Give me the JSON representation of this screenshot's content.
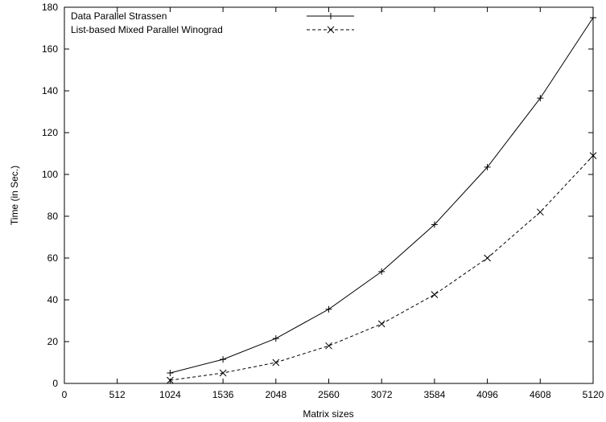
{
  "chart_data": {
    "type": "line",
    "title": "",
    "xlabel": "Matrix sizes",
    "ylabel": "Time (in Sec.)",
    "xlim": [
      0,
      5120
    ],
    "ylim": [
      0,
      180
    ],
    "xticks": [
      0,
      512,
      1024,
      1536,
      2048,
      2560,
      3072,
      3584,
      4096,
      4608,
      5120
    ],
    "yticks": [
      0,
      20,
      40,
      60,
      80,
      100,
      120,
      140,
      160,
      180
    ],
    "grid": false,
    "legend_position": "top-left",
    "x": [
      1024,
      1536,
      2048,
      2560,
      3072,
      3584,
      4096,
      4608,
      5120
    ],
    "series": [
      {
        "name": "Data Parallel Strassen",
        "values": [
          5,
          11.5,
          21.5,
          35.5,
          53.5,
          76,
          103.5,
          136.5,
          175
        ],
        "marker": "plus",
        "line_style": "solid",
        "color": "#000000"
      },
      {
        "name": "List-based Mixed Parallel Winograd",
        "values": [
          1.5,
          5,
          10,
          18,
          28.5,
          42.5,
          60,
          82,
          109
        ],
        "marker": "cross",
        "line_style": "dashed",
        "color": "#000000"
      }
    ]
  }
}
